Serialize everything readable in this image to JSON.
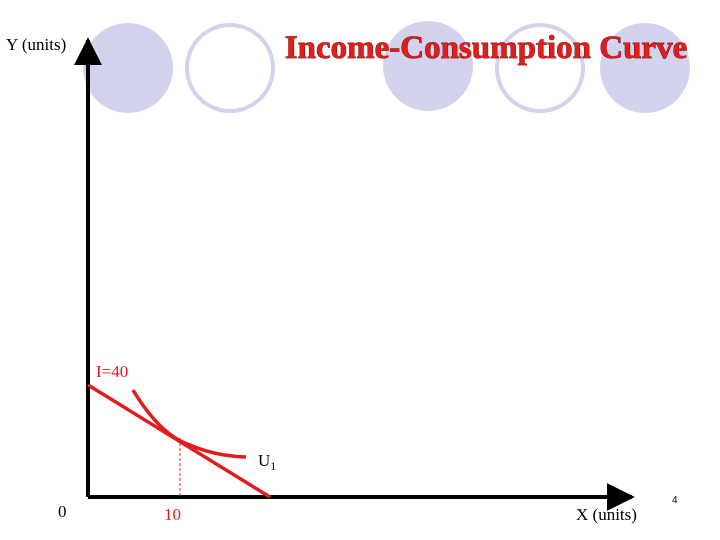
{
  "header": {
    "title": "Income-Consumption Curve"
  },
  "axes": {
    "y_label": "Y (units)",
    "x_label": "X (units)",
    "origin": "0",
    "x_tick": "10"
  },
  "budget_line": {
    "label": "I=40"
  },
  "indifference_curve": {
    "label": "U",
    "subscript": "1"
  },
  "slide_number": "4"
}
